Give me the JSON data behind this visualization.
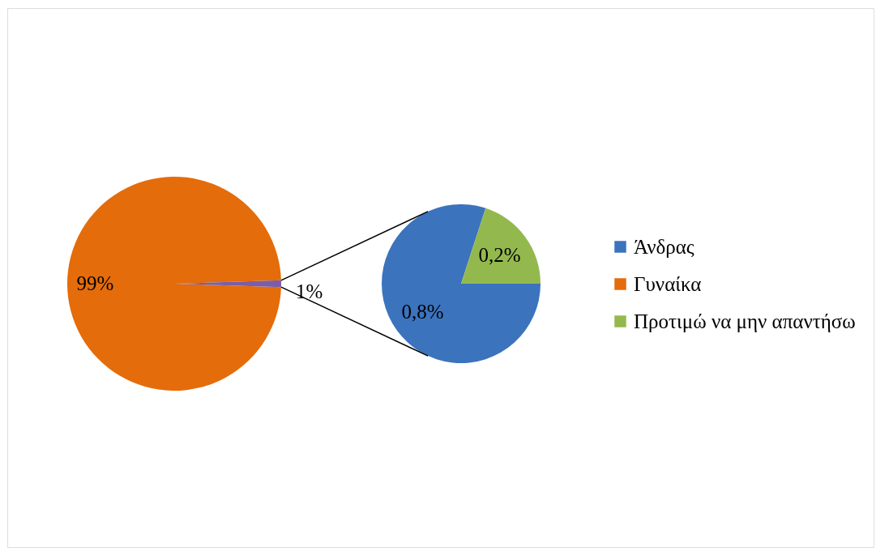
{
  "chart_data": [
    {
      "type": "pie",
      "categories": [
        "Γυναίκα",
        null
      ],
      "values": [
        99,
        1
      ],
      "colors": [
        "#e46c0a",
        "#7b5ea7"
      ],
      "value_labels": [
        "99%",
        "1%"
      ]
    },
    {
      "type": "pie",
      "categories": [
        "Άνδρας",
        "Προτιμώ να μην απαντήσω"
      ],
      "values": [
        0.8,
        0.2
      ],
      "colors": [
        "#3b73bd",
        "#93b94e"
      ],
      "value_labels": [
        "0,8%",
        "0,2%"
      ],
      "legend": "right"
    }
  ]
}
